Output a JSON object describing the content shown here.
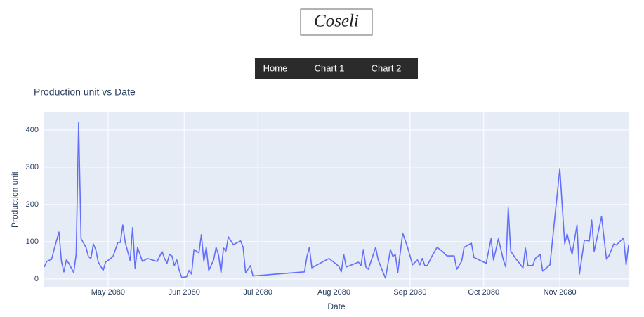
{
  "header": {
    "logo": "Coseli"
  },
  "nav": {
    "items": [
      "Home",
      "Chart 1",
      "Chart 2"
    ]
  },
  "chart_data": {
    "type": "line",
    "title": "Production unit vs Date",
    "x_label": "Date",
    "y_label": "Production unit",
    "color": "#636efa",
    "plot_background": "#e5ecf6",
    "grid": true,
    "x": [
      "2080-04-05",
      "2080-04-06",
      "2080-04-08",
      "2080-04-09",
      "2080-04-11",
      "2080-04-12",
      "2080-04-13",
      "2080-04-14",
      "2080-04-15",
      "2080-04-17",
      "2080-04-18",
      "2080-04-19",
      "2080-04-20",
      "2080-04-22",
      "2080-04-23",
      "2080-04-24",
      "2080-04-25",
      "2080-04-26",
      "2080-04-27",
      "2080-04-29",
      "2080-04-30",
      "2080-05-03",
      "2080-05-05",
      "2080-05-06",
      "2080-05-07",
      "2080-05-08",
      "2080-05-10",
      "2080-05-11",
      "2080-05-12",
      "2080-05-13",
      "2080-05-15",
      "2080-05-17",
      "2080-05-21",
      "2080-05-23",
      "2080-05-24",
      "2080-05-25",
      "2080-05-26",
      "2080-05-27",
      "2080-05-28",
      "2080-05-29",
      "2080-05-30",
      "2080-05-31",
      "2080-06-02",
      "2080-06-03",
      "2080-06-04",
      "2080-06-05",
      "2080-06-07",
      "2080-06-08",
      "2080-06-09",
      "2080-06-10",
      "2080-06-11",
      "2080-06-13",
      "2080-06-14",
      "2080-06-15",
      "2080-06-16",
      "2080-06-17",
      "2080-06-18",
      "2080-06-19",
      "2080-06-21",
      "2080-06-24",
      "2080-06-25",
      "2080-06-26",
      "2080-06-28",
      "2080-06-29",
      "2080-07-20",
      "2080-07-21",
      "2080-07-22",
      "2080-07-23",
      "2080-07-30",
      "2080-08-03",
      "2080-08-04",
      "2080-08-05",
      "2080-08-06",
      "2080-08-11",
      "2080-08-12",
      "2080-08-13",
      "2080-08-14",
      "2080-08-15",
      "2080-08-18",
      "2080-08-19",
      "2080-08-22",
      "2080-08-24",
      "2080-08-25",
      "2080-08-26",
      "2080-08-27",
      "2080-08-29",
      "2080-08-31",
      "2080-09-02",
      "2080-09-04",
      "2080-09-05",
      "2080-09-06",
      "2080-09-07",
      "2080-09-08",
      "2080-09-10",
      "2080-09-12",
      "2080-09-14",
      "2080-09-16",
      "2080-09-19",
      "2080-09-20",
      "2080-09-22",
      "2080-09-23",
      "2080-09-26",
      "2080-09-27",
      "2080-10-02",
      "2080-10-04",
      "2080-10-05",
      "2080-10-07",
      "2080-10-09",
      "2080-10-10",
      "2080-10-11",
      "2080-10-12",
      "2080-10-14",
      "2080-10-15",
      "2080-10-17",
      "2080-10-18",
      "2080-10-19",
      "2080-10-21",
      "2080-10-22",
      "2080-10-24",
      "2080-10-25",
      "2080-10-28",
      "2080-11-01",
      "2080-11-03",
      "2080-11-04",
      "2080-11-06",
      "2080-11-08",
      "2080-11-09",
      "2080-11-11",
      "2080-11-13",
      "2080-11-14",
      "2080-11-15",
      "2080-11-18",
      "2080-11-20",
      "2080-11-21",
      "2080-11-23",
      "2080-11-24",
      "2080-11-27",
      "2080-11-28",
      "2080-11-29"
    ],
    "values": [
      32,
      47,
      53,
      79,
      126,
      47,
      19,
      51,
      42,
      17,
      66,
      421,
      108,
      85,
      60,
      55,
      94,
      79,
      45,
      23,
      45,
      60,
      98,
      98,
      145,
      98,
      49,
      138,
      28,
      85,
      47,
      55,
      47,
      74,
      55,
      42,
      66,
      62,
      36,
      51,
      23,
      4,
      6,
      23,
      13,
      79,
      70,
      119,
      47,
      85,
      23,
      51,
      85,
      64,
      17,
      83,
      75,
      113,
      92,
      102,
      85,
      17,
      36,
      8,
      19,
      60,
      85,
      30,
      55,
      34,
      19,
      66,
      32,
      45,
      36,
      79,
      32,
      26,
      85,
      51,
      2,
      79,
      60,
      66,
      17,
      123,
      85,
      38,
      51,
      38,
      55,
      36,
      36,
      62,
      85,
      75,
      62,
      62,
      26,
      47,
      85,
      96,
      58,
      42,
      108,
      51,
      108,
      51,
      32,
      191,
      75,
      55,
      47,
      30,
      83,
      36,
      36,
      55,
      66,
      21,
      38,
      296,
      94,
      121,
      66,
      145,
      13,
      104,
      102,
      158,
      74,
      168,
      53,
      62,
      94,
      91,
      110,
      38,
      91
    ],
    "xlim": [
      "2080-04-05",
      "2080-11-29"
    ],
    "xticks": [
      {
        "value": "2080-05-01",
        "label": "May 2080"
      },
      {
        "value": "2080-06-01",
        "label": "Jun 2080"
      },
      {
        "value": "2080-07-01",
        "label": "Jul 2080"
      },
      {
        "value": "2080-08-01",
        "label": "Aug 2080"
      },
      {
        "value": "2080-09-01",
        "label": "Sep 2080"
      },
      {
        "value": "2080-10-01",
        "label": "Oct 2080"
      },
      {
        "value": "2080-11-01",
        "label": "Nov 2080"
      }
    ],
    "ylim": [
      -21,
      447
    ],
    "yticks": [
      0,
      100,
      200,
      300,
      400
    ]
  }
}
